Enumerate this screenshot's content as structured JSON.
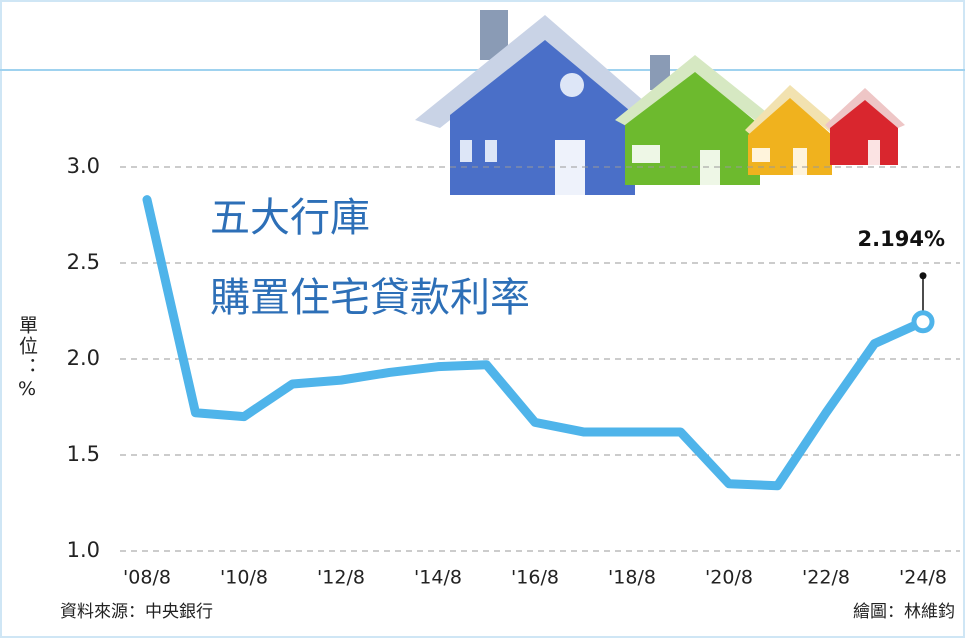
{
  "chart_data": {
    "type": "line",
    "title": "五大行庫",
    "subtitle": "購置住宅貸款利率",
    "y_label": "單位：%",
    "source": "資料來源：中央銀行",
    "credit": "繪圖：林維鈞",
    "categories": [
      "'08/8",
      null,
      "'10/8",
      null,
      "'12/8",
      null,
      "'14/8",
      null,
      "'16/8",
      null,
      "'18/8",
      null,
      "'20/8",
      null,
      "'22/8",
      null,
      "'24/8"
    ],
    "values": [
      2.83,
      1.72,
      1.7,
      1.87,
      1.89,
      1.93,
      1.96,
      1.97,
      1.67,
      1.62,
      1.62,
      1.62,
      1.35,
      1.34,
      1.72,
      2.08,
      2.194
    ],
    "value_labels": [
      null,
      null,
      null,
      null,
      null,
      null,
      null,
      null,
      null,
      null,
      null,
      null,
      null,
      null,
      null,
      null,
      "2.194%"
    ],
    "color": "#4fb4ea",
    "ylim": [
      1.0,
      3.5
    ],
    "yticks": [
      {
        "value": 1.0,
        "label": "1.0"
      },
      1.5,
      {
        "value": 2.0,
        "label": "2.0"
      },
      2.5,
      {
        "value": 3.0,
        "label": "3.0"
      }
    ],
    "grid": true
  }
}
